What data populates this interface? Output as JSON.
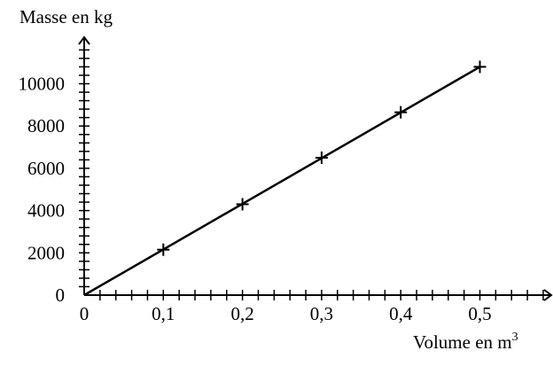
{
  "chart_data": {
    "type": "scatter",
    "title": "",
    "xlabel": "Volume en m",
    "xlabel_sup": "3",
    "ylabel": "Masse en kg",
    "x_ticks": [
      0,
      0.1,
      0.2,
      0.3,
      0.4,
      0.5
    ],
    "x_tick_labels": [
      "0",
      "0,1",
      "0,2",
      "0,3",
      "0,4",
      "0,5"
    ],
    "y_ticks": [
      0,
      2000,
      4000,
      6000,
      8000,
      10000
    ],
    "y_tick_labels": [
      "0",
      "2000",
      "4000",
      "6000",
      "8000",
      "10000"
    ],
    "x_minor_step": 0.02,
    "y_minor_step": 400,
    "xlim": [
      0,
      0.6
    ],
    "ylim": [
      0,
      11500
    ],
    "grid": false,
    "series": [
      {
        "x": [
          0.1,
          0.2,
          0.3,
          0.4,
          0.5
        ],
        "y": [
          2150,
          4300,
          6500,
          8650,
          10800
        ]
      }
    ],
    "fit_line": {
      "x": [
        0,
        0.5
      ],
      "y": [
        0,
        10800
      ]
    }
  }
}
